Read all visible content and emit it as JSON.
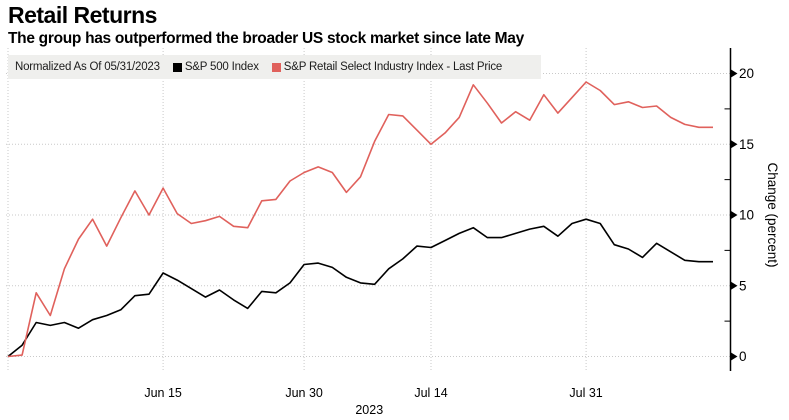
{
  "header": {
    "title": "Retail Returns",
    "subtitle": "The group has outperformed the broader US stock market since late May"
  },
  "legend": {
    "normalized_label": "Normalized As Of 05/31/2023"
  },
  "chart_data": {
    "type": "line",
    "title": "Retail Returns",
    "subtitle": "The group has outperformed the broader US stock market since late May",
    "normalized_as_of": "05/31/2023",
    "ylabel": "Change (percent)",
    "ylim": [
      0,
      20
    ],
    "y_ticks": [
      0,
      5,
      10,
      15,
      20
    ],
    "y_minor_ticks": [
      2.5,
      7.5,
      12.5,
      17.5
    ],
    "grid": "dotted",
    "legend_position": "top",
    "year_label": "2023",
    "x": [
      "May 31",
      "Jun 1",
      "Jun 2",
      "Jun 5",
      "Jun 6",
      "Jun 7",
      "Jun 8",
      "Jun 9",
      "Jun 12",
      "Jun 13",
      "Jun 14",
      "Jun 15",
      "Jun 16",
      "Jun 20",
      "Jun 21",
      "Jun 22",
      "Jun 23",
      "Jun 26",
      "Jun 27",
      "Jun 28",
      "Jun 29",
      "Jun 30",
      "Jul 3",
      "Jul 5",
      "Jul 6",
      "Jul 7",
      "Jul 10",
      "Jul 11",
      "Jul 12",
      "Jul 13",
      "Jul 14",
      "Jul 17",
      "Jul 18",
      "Jul 19",
      "Jul 20",
      "Jul 21",
      "Jul 24",
      "Jul 25",
      "Jul 26",
      "Jul 27",
      "Jul 28",
      "Jul 31",
      "Aug 1",
      "Aug 2",
      "Aug 3",
      "Aug 4",
      "Aug 7",
      "Aug 8",
      "Aug 9",
      "Aug 10",
      "Aug 11"
    ],
    "x_tick_labels": [
      {
        "label": "Jun 15",
        "index": 11
      },
      {
        "label": "Jun 30",
        "index": 21
      },
      {
        "label": "Jul 14",
        "index": 30
      },
      {
        "label": "Jul 31",
        "index": 41
      }
    ],
    "x_gridline_indices": [
      0,
      11,
      21,
      30,
      41
    ],
    "series": [
      {
        "name": "S&P 500 Index",
        "color": "#000000",
        "values": [
          0.0,
          0.8,
          2.4,
          2.2,
          2.4,
          2.0,
          2.6,
          2.9,
          3.3,
          4.3,
          4.4,
          5.9,
          5.4,
          4.8,
          4.2,
          4.7,
          4.0,
          3.4,
          4.6,
          4.5,
          5.2,
          6.5,
          6.6,
          6.3,
          5.6,
          5.2,
          5.1,
          6.2,
          6.9,
          7.8,
          7.7,
          8.2,
          8.7,
          9.1,
          8.4,
          8.4,
          8.7,
          9.0,
          9.2,
          8.5,
          9.4,
          9.7,
          9.4,
          7.9,
          7.6,
          7.0,
          8.0,
          7.4,
          6.8,
          6.7,
          6.7
        ]
      },
      {
        "name": "S&P Retail Select Industry Index - Last Price",
        "color": "#e0615c",
        "values": [
          0.0,
          0.1,
          4.5,
          2.9,
          6.2,
          8.3,
          9.7,
          7.8,
          9.8,
          11.7,
          10.0,
          11.9,
          10.1,
          9.4,
          9.6,
          9.9,
          9.2,
          9.1,
          11.0,
          11.1,
          12.4,
          13.0,
          13.4,
          13.0,
          11.6,
          12.7,
          15.2,
          17.1,
          17.0,
          16.0,
          15.0,
          15.8,
          16.9,
          19.2,
          17.9,
          16.5,
          17.3,
          16.7,
          18.5,
          17.2,
          18.3,
          19.4,
          18.8,
          17.8,
          18.0,
          17.6,
          17.7,
          16.9,
          16.4,
          16.2,
          16.2
        ]
      }
    ]
  }
}
